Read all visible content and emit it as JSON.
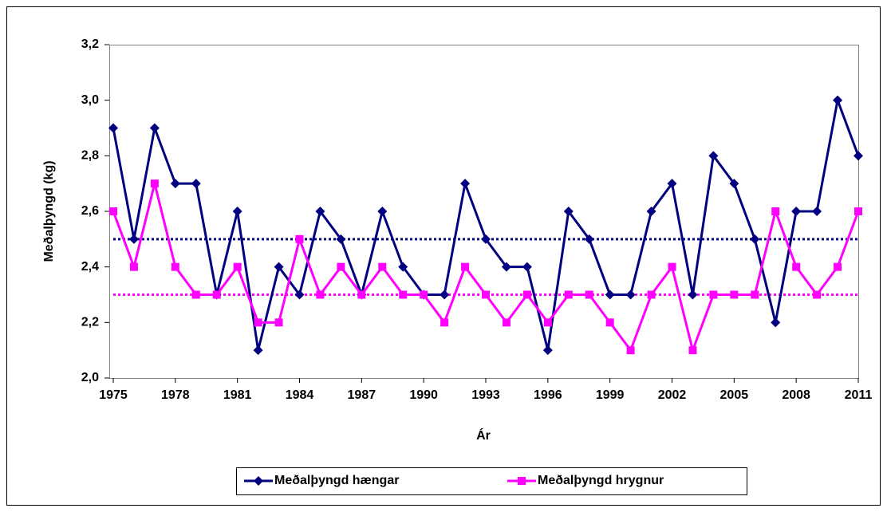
{
  "chart_data": {
    "type": "line",
    "y_label": "Meðalþyngd (kg)",
    "x_label": "Ár",
    "x": [
      1975,
      1976,
      1977,
      1978,
      1979,
      1980,
      1981,
      1982,
      1983,
      1984,
      1985,
      1986,
      1987,
      1988,
      1989,
      1990,
      1991,
      1992,
      1993,
      1994,
      1995,
      1996,
      1997,
      1998,
      1999,
      2000,
      2001,
      2002,
      2003,
      2004,
      2005,
      2006,
      2007,
      2008,
      2009,
      2010,
      2011
    ],
    "xlim": [
      1975,
      2011
    ],
    "xticks": [
      1975,
      1978,
      1981,
      1984,
      1987,
      1990,
      1993,
      1996,
      1999,
      2002,
      2005,
      2008,
      2011
    ],
    "ylim": [
      2.0,
      3.2
    ],
    "yticks": [
      {
        "value": 2.0,
        "label": "2,0"
      },
      {
        "value": 2.2,
        "label": "2,2"
      },
      {
        "value": 2.4,
        "label": "2,4"
      },
      {
        "value": 2.6,
        "label": "2,6"
      },
      {
        "value": 2.8,
        "label": "2,8"
      },
      {
        "value": 3.0,
        "label": "3,0"
      },
      {
        "value": 3.2,
        "label": "3,2"
      }
    ],
    "grid": false,
    "legend": "bottom",
    "series": [
      {
        "name": "Meðalþyngd hængar",
        "color": "#000080",
        "marker": "diamond",
        "mean": 2.5,
        "values": [
          2.9,
          2.5,
          2.9,
          2.7,
          2.7,
          2.3,
          2.6,
          2.1,
          2.4,
          2.3,
          2.6,
          2.5,
          2.3,
          2.6,
          2.4,
          2.3,
          2.3,
          2.7,
          2.5,
          2.4,
          2.4,
          2.1,
          2.6,
          2.5,
          2.3,
          2.3,
          2.6,
          2.7,
          2.3,
          2.8,
          2.7,
          2.5,
          2.2,
          2.6,
          2.6,
          3.0,
          2.8
        ]
      },
      {
        "name": "Meðalþyngd hrygnur",
        "color": "#ff00ff",
        "marker": "square",
        "mean": 2.3,
        "values": [
          2.6,
          2.4,
          2.7,
          2.4,
          2.3,
          2.3,
          2.4,
          2.2,
          2.2,
          2.5,
          2.3,
          2.4,
          2.3,
          2.4,
          2.3,
          2.3,
          2.2,
          2.4,
          2.3,
          2.2,
          2.3,
          2.2,
          2.3,
          2.3,
          2.2,
          2.1,
          2.3,
          2.4,
          2.1,
          2.3,
          2.3,
          2.3,
          2.6,
          2.4,
          2.3,
          2.4,
          2.6
        ]
      }
    ]
  }
}
